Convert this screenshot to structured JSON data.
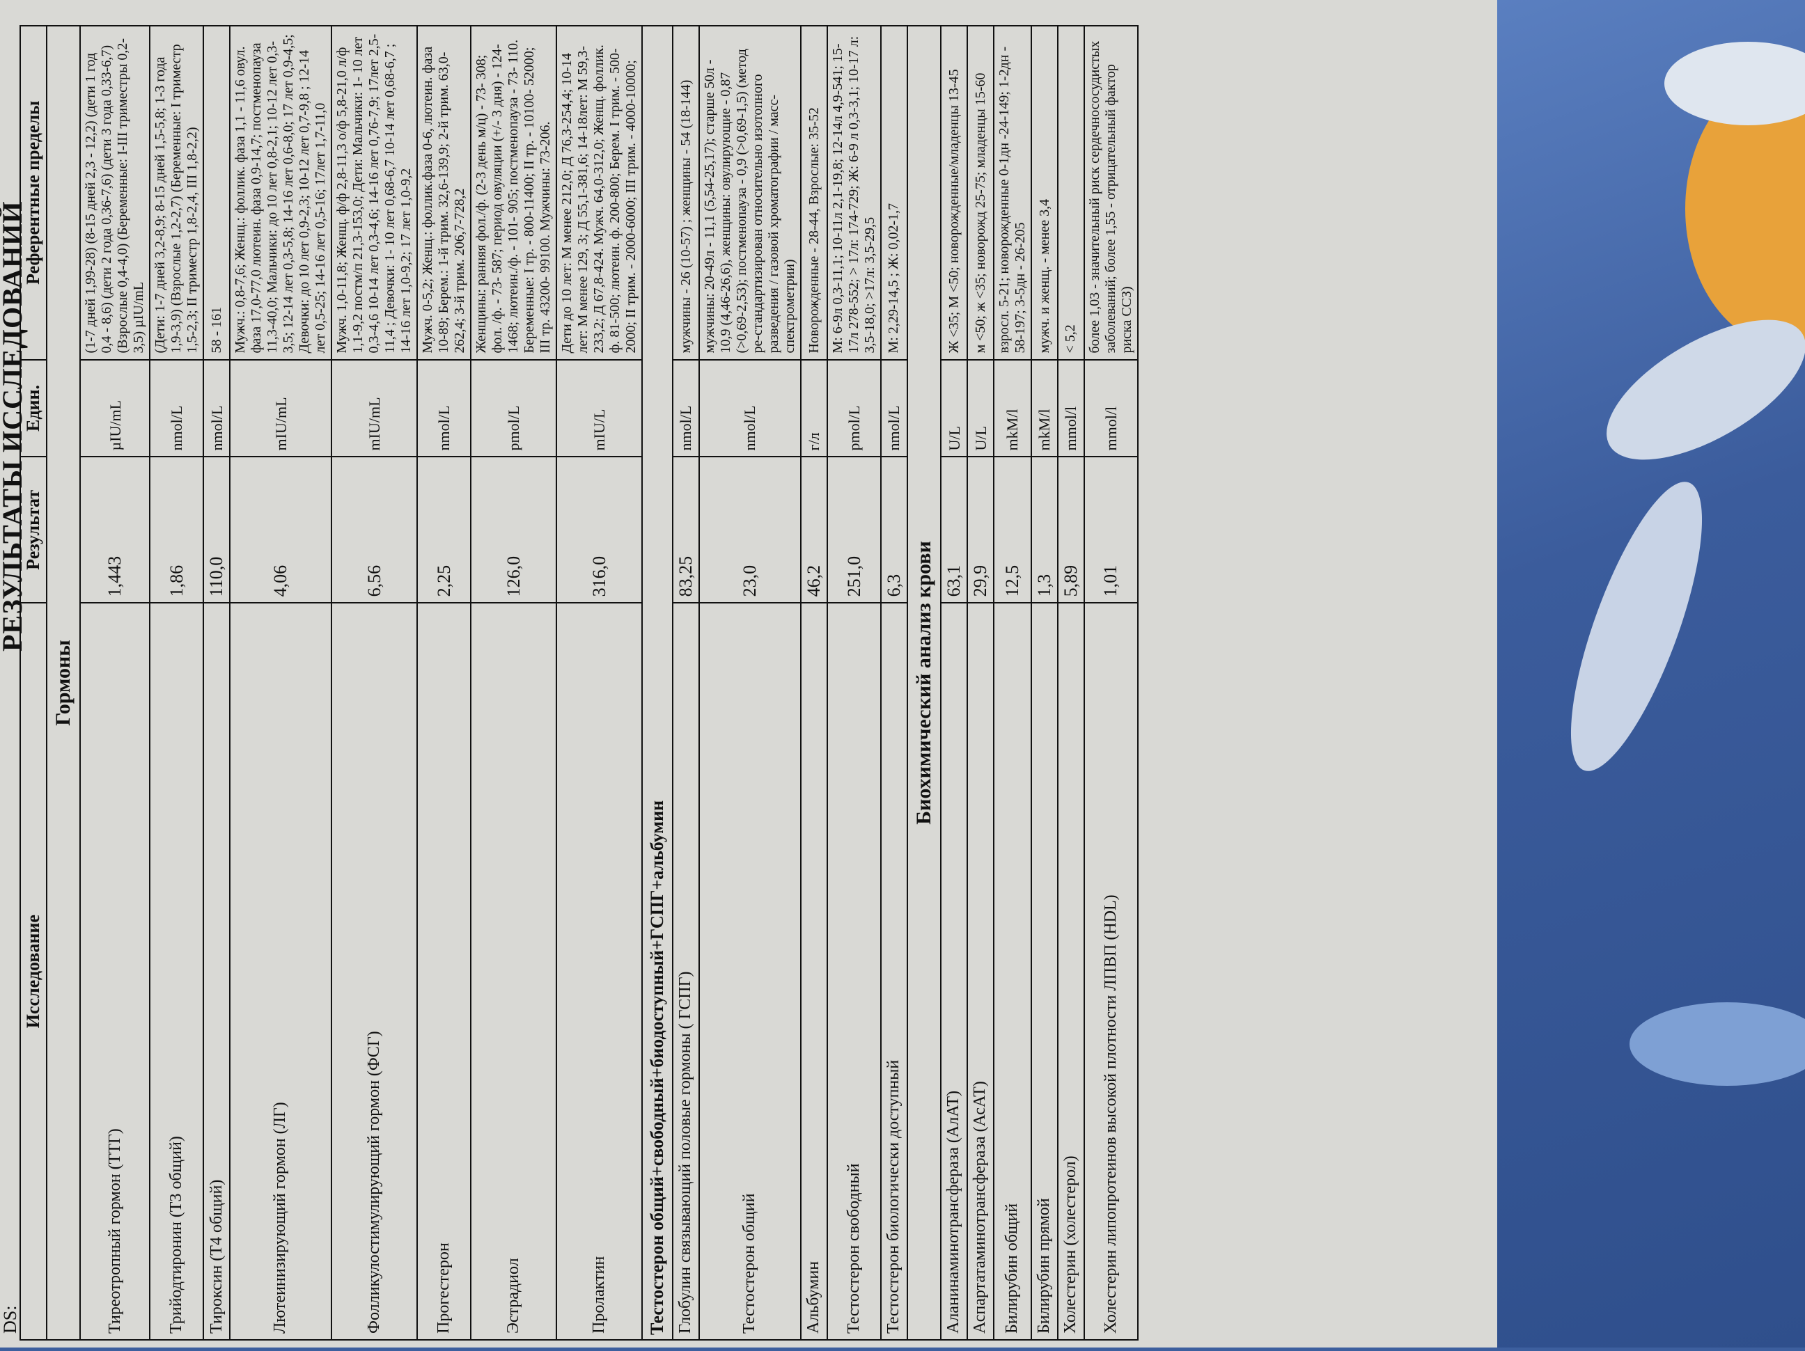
{
  "header": {
    "ds": "DS:",
    "title": "РЕЗУЛЬТАТЫ ИССЛЕДОВАНИЙ"
  },
  "table": {
    "columns": [
      "Исследование",
      "Результат",
      "Един.",
      "Референтные пределы"
    ],
    "sections": [
      {
        "title": "Гормоны",
        "rows": [
          [
            "Тиреотропный гормон (ТТГ)",
            "1,443",
            "µIU/mL",
            "(1-7 дней 1,99-28) (8-15 дней 2,3 - 12,2) (дети 1 год 0,4 - 8,6) (дети 2 года 0,36-7,6) (дети 3 года 0,33-6,7) (Взрослые 0,4-4,0) (Беременные: I-III триместры 0,2-3,5) µIU/mL"
          ],
          [
            "Трийодтиронин (Т3 общий)",
            "1,86",
            "nmol/L",
            "(Дети: 1-7 дней 3,2-8,9; 8-15 дней 1,5-5,8; 1-3 года 1,9-3,9) (Взрослые 1,2-2,7) (Беременные: I триместр 1,5-2,3; II триместр 1,8-2,4, III 1,8-2,2)"
          ],
          [
            "Тироксин (Т4 общий)",
            "110,0",
            "nmol/L",
            "58 - 161"
          ],
          [
            "Лютеинизирующий гормон (ЛГ)",
            "4,06",
            "mIU/mL",
            "Мужч.: 0,8-7,6; Женщ.: фоллик. фаза 1,1 - 11,6 овул. фаза 17,0-77,0 лютеин. фаза 0,9-14,7; постменопауза 11,3-40,0; Мальчики: до 10 лет 0,8-2,1; 10-12 лет 0,3-3,5; 12-14 лет 0,3-5,8; 14-16 лет 0,6-8,0; 17 лет 0,9-4,5; Девочки: до 10 лет 0,9-2,3; 10-12 лет 0,7-9,8 ; 12-14 лет 0,5-25; 14-16 лет 0,5-16; 17лет 1,7-11,0"
          ],
          [
            "Фолликулостимулирующий гормон (ФСГ)",
            "6,56",
            "mIU/mL",
            "Мужч. 1,0-11,8; Женщ. ф/ф 2,8-11,3 о/ф 5,8-21,0 л/ф 1,1-9,2 постм/п 21,3-153,0; Дети: Мальчики: 1- 10 лет 0,3-4,6 10-14 лет 0,3-4,6; 14-16 лет 0,76-7,9; 17лет 2,5-11,4 ; Девочки: 1- 10 лет 0,68-6,7 10-14 лет 0,68-6,7 ; 14-16 лет 1,0-9,2; 17 лет 1,0-9,2"
          ],
          [
            "Прогестерон",
            "2,25",
            "nmol/L",
            "Мужч. 0-5,2; Женщ.: фоллик.фаза 0-6, лютеин. фаза 10-89; Берем.: 1-й трим. 32,6-139,9; 2-й трим. 63,0-262,4; 3-й трим. 206,7-728,2"
          ],
          [
            "Эстрадиол",
            "126,0",
            "pmol/L",
            "Женщины: ранняя фол./ф. (2-3 день м/ц) - 73- 308; фол. /ф. - 73- 587; период овуляции (+/- 3 дня) - 124- 1468; лютеин./ф. - 101- 905; постменопауза - 73- 110. Беременные: I тр. - 800-11400; II тр. - 10100- 52000; III тр. 43200- 99100. Мужчины: 73-206."
          ],
          [
            "Пролактин",
            "316,0",
            "mIU/L",
            "Дети до 10 лет: М менее 212,0; Д 76,3-254,4; 10-14 лет: М менее 129, 3; Д 55,1-381,6; 14-18лет: М 59,3-233,2; Д 67,8-424. Мужч. 64,0-312,0; Женщ. фоллик. ф. 81-500; лютеин. ф. 200-800; Берем. I трим. - 500-2000; II трим. - 2000-6000; III трим. - 4000-10000;"
          ]
        ]
      },
      {
        "title": "Тестостерон общий+свободный+биодоступный+ГСПГ+альбумин",
        "rows": [
          [
            "Глобулин связывающий половые гормоны ( ГСПГ)",
            "83,25",
            "nmol/L",
            "мужчины - 26 (10-57) ; женщины - 54 (18-144)"
          ],
          [
            "Тестостерон общий",
            "23,0",
            "nmol/L",
            "мужчины: 20-49л - 11,1 (5,54-25,17); старше 50л - 10,9 (4,46-26,6), женщины: овулирующие - 0,87 (>0,69-2,53); постменопауза - 0,9 (>0,69-1,5) (метод ре-стандартизирован относительно изотопного разведения / газовой хроматографии / масс-спектрометрии)"
          ],
          [
            "Альбумин",
            "46,2",
            "г/л",
            "Новорожденные - 28-44, Взрослые: 35-52"
          ],
          [
            "Тестостерон свободный",
            "251,0",
            "pmol/L",
            "М: 6-9л 0,3-11,1; 10-11л 2,1-19,8; 12-14л 4,9-541; 15-17л 278-552; > 17л: 174-729; Ж: 6-9 л 0,3-3,1; 10-17 л: 3,5-18,0; >17л: 3,5-29,5"
          ],
          [
            "Тестостерон биологически доступный",
            "6,3",
            "nmol/L",
            "М: 2,29-14,5 ; Ж: 0,02-1,7"
          ]
        ]
      },
      {
        "title": "Биохимический анализ крови",
        "rows": [
          [
            "Аланинаминотрансфераза (АлАТ)",
            "63,1",
            "U/L",
            "Ж <35; М <50; новорожденные/младенцы 13-45"
          ],
          [
            "Аспартатаминотрансфераза (АсАТ)",
            "29,9",
            "U/L",
            "м <50; ж <35; новорожд 25-75; младенцы 15-60"
          ],
          [
            "Билирубин общий",
            "12,5",
            "mkM/l",
            "взросл. 5-21; новорожденные 0-1дн -24-149; 1-2дн - 58-197; 3-5дн - 26-205"
          ],
          [
            "Билирубин прямой",
            "1,3",
            "mkM/l",
            "мужч. и женщ. - менее 3,4"
          ],
          [
            "Холестерин (холестерол)",
            "5,89",
            "mmol/l",
            "< 5,2"
          ],
          [
            "Холестерин липопротеинов высокой плотности ЛПВП (HDL)",
            "1,01",
            "mmol/l",
            "более 1,03 - значительный риск сердечнососудистых заболеваний; более 1,55 - отрицательный фактор риска ССЗ)"
          ]
        ]
      }
    ]
  }
}
